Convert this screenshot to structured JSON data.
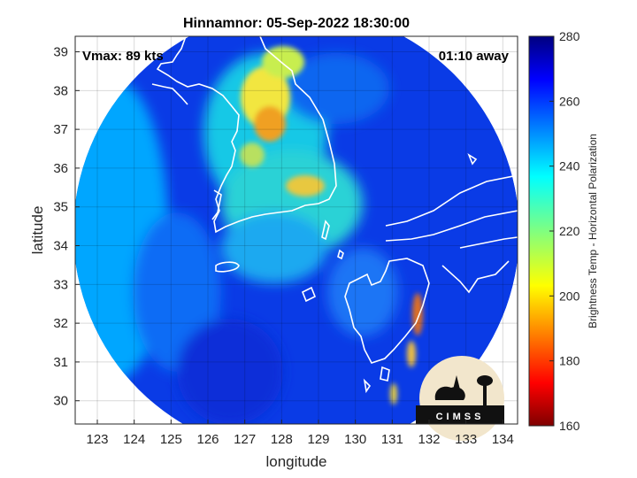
{
  "chart_data": {
    "type": "heatmap",
    "title": "Hinnamnor: 05-Sep-2022 18:30:00",
    "xlabel": "longitude",
    "ylabel": "latitude",
    "xlim": [
      122.4,
      134.4
    ],
    "ylim": [
      29.4,
      39.4
    ],
    "x_ticks": [
      "123",
      "124",
      "125",
      "126",
      "127",
      "128",
      "129",
      "130",
      "131",
      "132",
      "133",
      "134"
    ],
    "y_ticks": [
      "30",
      "31",
      "32",
      "33",
      "34",
      "35",
      "36",
      "37",
      "38",
      "39"
    ],
    "grid": true,
    "annotations": {
      "vmax": "Vmax: 89 kts",
      "time_away": "01:10 away"
    },
    "colorbar": {
      "label": "Brightness Temp - Horizontal Polarization",
      "range": [
        160,
        280
      ],
      "ticks": [
        "160",
        "180",
        "200",
        "220",
        "240",
        "260",
        "280"
      ],
      "colormap": "jet"
    },
    "storm_center": {
      "lon": 128.4,
      "lat": 35.2
    },
    "swath_center": {
      "lon": 128.9,
      "lat": 34.5
    },
    "logo_text": "CIMSS"
  },
  "colors": {
    "jet_low": "#7f0000",
    "jet_high": "#00007f",
    "coastline": "#ffffff"
  }
}
